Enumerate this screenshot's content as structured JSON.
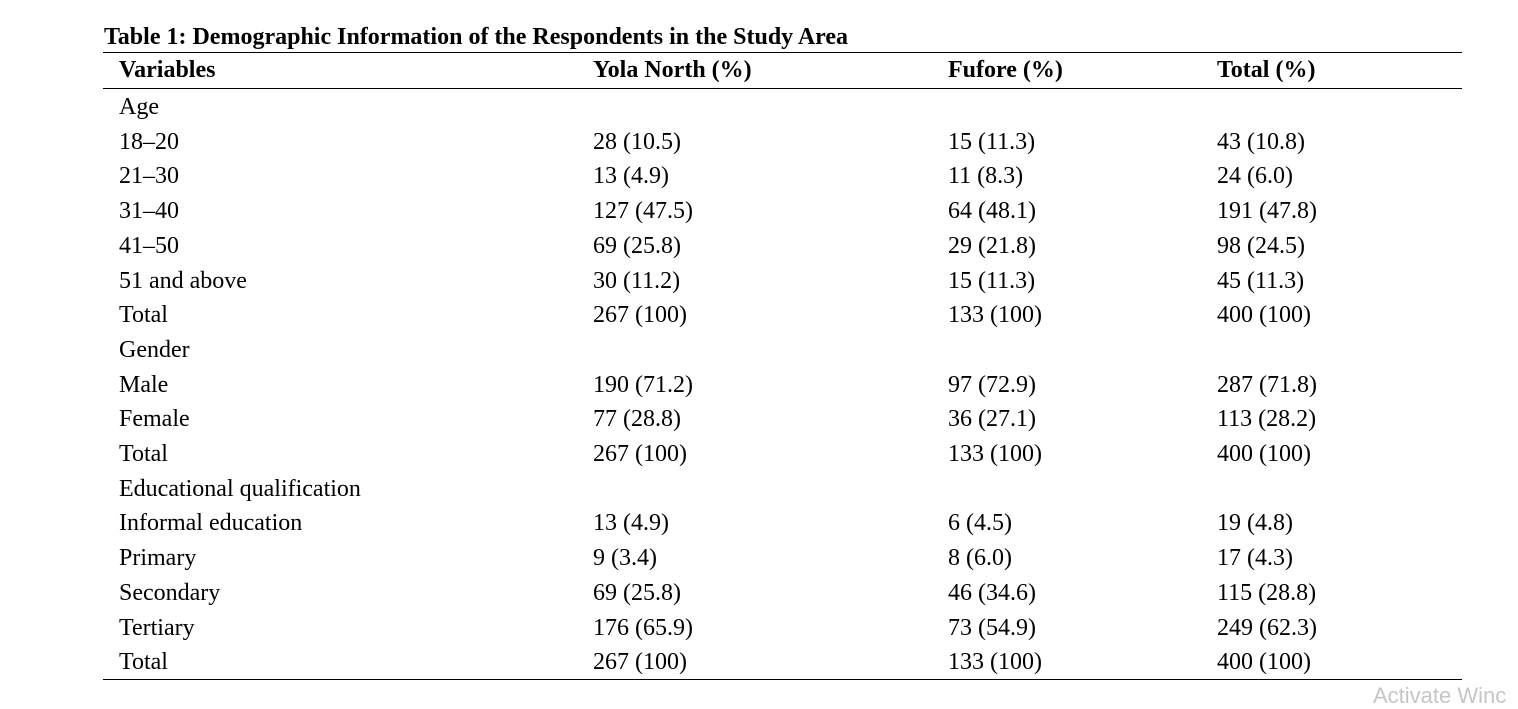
{
  "table": {
    "caption": "Table 1: Demographic Information of the Respondents in the Study Area",
    "headers": [
      "Variables",
      "Yola North (%)",
      "Fufore (%)",
      "Total (%)"
    ],
    "rows": [
      [
        "Age",
        "",
        "",
        ""
      ],
      [
        "18–20",
        "28 (10.5)",
        "15 (11.3)",
        "43 (10.8)"
      ],
      [
        "21–30",
        "13 (4.9)",
        "11 (8.3)",
        "24 (6.0)"
      ],
      [
        "31–40",
        "127 (47.5)",
        "64 (48.1)",
        "191 (47.8)"
      ],
      [
        "41–50",
        "69 (25.8)",
        "29 (21.8)",
        "98 (24.5)"
      ],
      [
        "51 and above",
        "30 (11.2)",
        "15 (11.3)",
        "45 (11.3)"
      ],
      [
        "Total",
        "267 (100)",
        "133 (100)",
        "400 (100)"
      ],
      [
        "Gender",
        "",
        "",
        ""
      ],
      [
        "Male",
        "190 (71.2)",
        "97 (72.9)",
        "287 (71.8)"
      ],
      [
        "Female",
        "77 (28.8)",
        "36 (27.1)",
        "113 (28.2)"
      ],
      [
        "Total",
        "267 (100)",
        "133 (100)",
        "400 (100)"
      ],
      [
        "Educational qualification",
        "",
        "",
        ""
      ],
      [
        "Informal education",
        "13 (4.9)",
        "6 (4.5)",
        "19 (4.8)"
      ],
      [
        "Primary",
        "9 (3.4)",
        "8 (6.0)",
        "17 (4.3)"
      ],
      [
        "Secondary",
        "69 (25.8)",
        "46 (34.6)",
        "115 (28.8)"
      ],
      [
        "Tertiary",
        "176 (65.9)",
        "73 (54.9)",
        "249 (62.3)"
      ],
      [
        "Total",
        "267 (100)",
        "133 (100)",
        "400 (100)"
      ]
    ]
  },
  "watermark": {
    "text": "Activate Winc"
  }
}
